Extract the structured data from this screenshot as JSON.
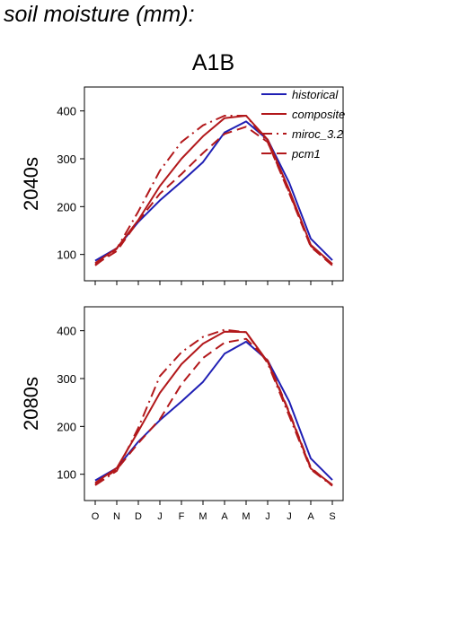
{
  "page_title": "soil moisture (mm):",
  "scenario_title": "A1B",
  "colors": {
    "historical": "#1f1fb4",
    "composite": "#b2181b",
    "miroc_3.2": "#b2181b",
    "pcm1": "#b2181b",
    "frame": "#000000"
  },
  "chart_data": [
    {
      "type": "line",
      "row_label": "2040s",
      "categories": [
        "O",
        "N",
        "D",
        "J",
        "F",
        "M",
        "A",
        "M",
        "J",
        "J",
        "A",
        "S"
      ],
      "ylim": [
        45,
        450
      ],
      "yticks": [
        100,
        200,
        300,
        400
      ],
      "legend": "top-right",
      "series": [
        {
          "name": "historical",
          "style": "solid",
          "values": [
            87,
            113,
            168,
            213,
            252,
            293,
            355,
            378,
            340,
            250,
            133,
            88
          ]
        },
        {
          "name": "composite",
          "style": "solid",
          "values": [
            82,
            113,
            172,
            243,
            300,
            347,
            385,
            390,
            340,
            235,
            120,
            80
          ]
        },
        {
          "name": "miroc_3.2",
          "style": "dashdot",
          "values": [
            77,
            112,
            190,
            275,
            335,
            370,
            390,
            390,
            335,
            230,
            118,
            79
          ]
        },
        {
          "name": "pcm1",
          "style": "dashed",
          "values": [
            79,
            107,
            170,
            227,
            268,
            312,
            352,
            367,
            335,
            228,
            116,
            77
          ]
        }
      ]
    },
    {
      "type": "line",
      "row_label": "2080s",
      "categories": [
        "O",
        "N",
        "D",
        "J",
        "F",
        "M",
        "A",
        "M",
        "J",
        "J",
        "A",
        "S"
      ],
      "ylim": [
        45,
        450
      ],
      "yticks": [
        100,
        200,
        300,
        400
      ],
      "series": [
        {
          "name": "historical",
          "style": "solid",
          "values": [
            87,
            113,
            168,
            213,
            252,
            293,
            352,
            377,
            338,
            252,
            133,
            88
          ]
        },
        {
          "name": "composite",
          "style": "solid",
          "values": [
            82,
            113,
            190,
            270,
            330,
            373,
            398,
            397,
            335,
            228,
            112,
            78
          ]
        },
        {
          "name": "miroc_3.2",
          "style": "dashdot",
          "values": [
            77,
            107,
            197,
            305,
            355,
            387,
            402,
            397,
            332,
            222,
            110,
            76
          ]
        },
        {
          "name": "pcm1",
          "style": "dashed",
          "values": [
            79,
            110,
            165,
            215,
            288,
            343,
            375,
            383,
            338,
            230,
            114,
            76
          ]
        }
      ]
    }
  ]
}
